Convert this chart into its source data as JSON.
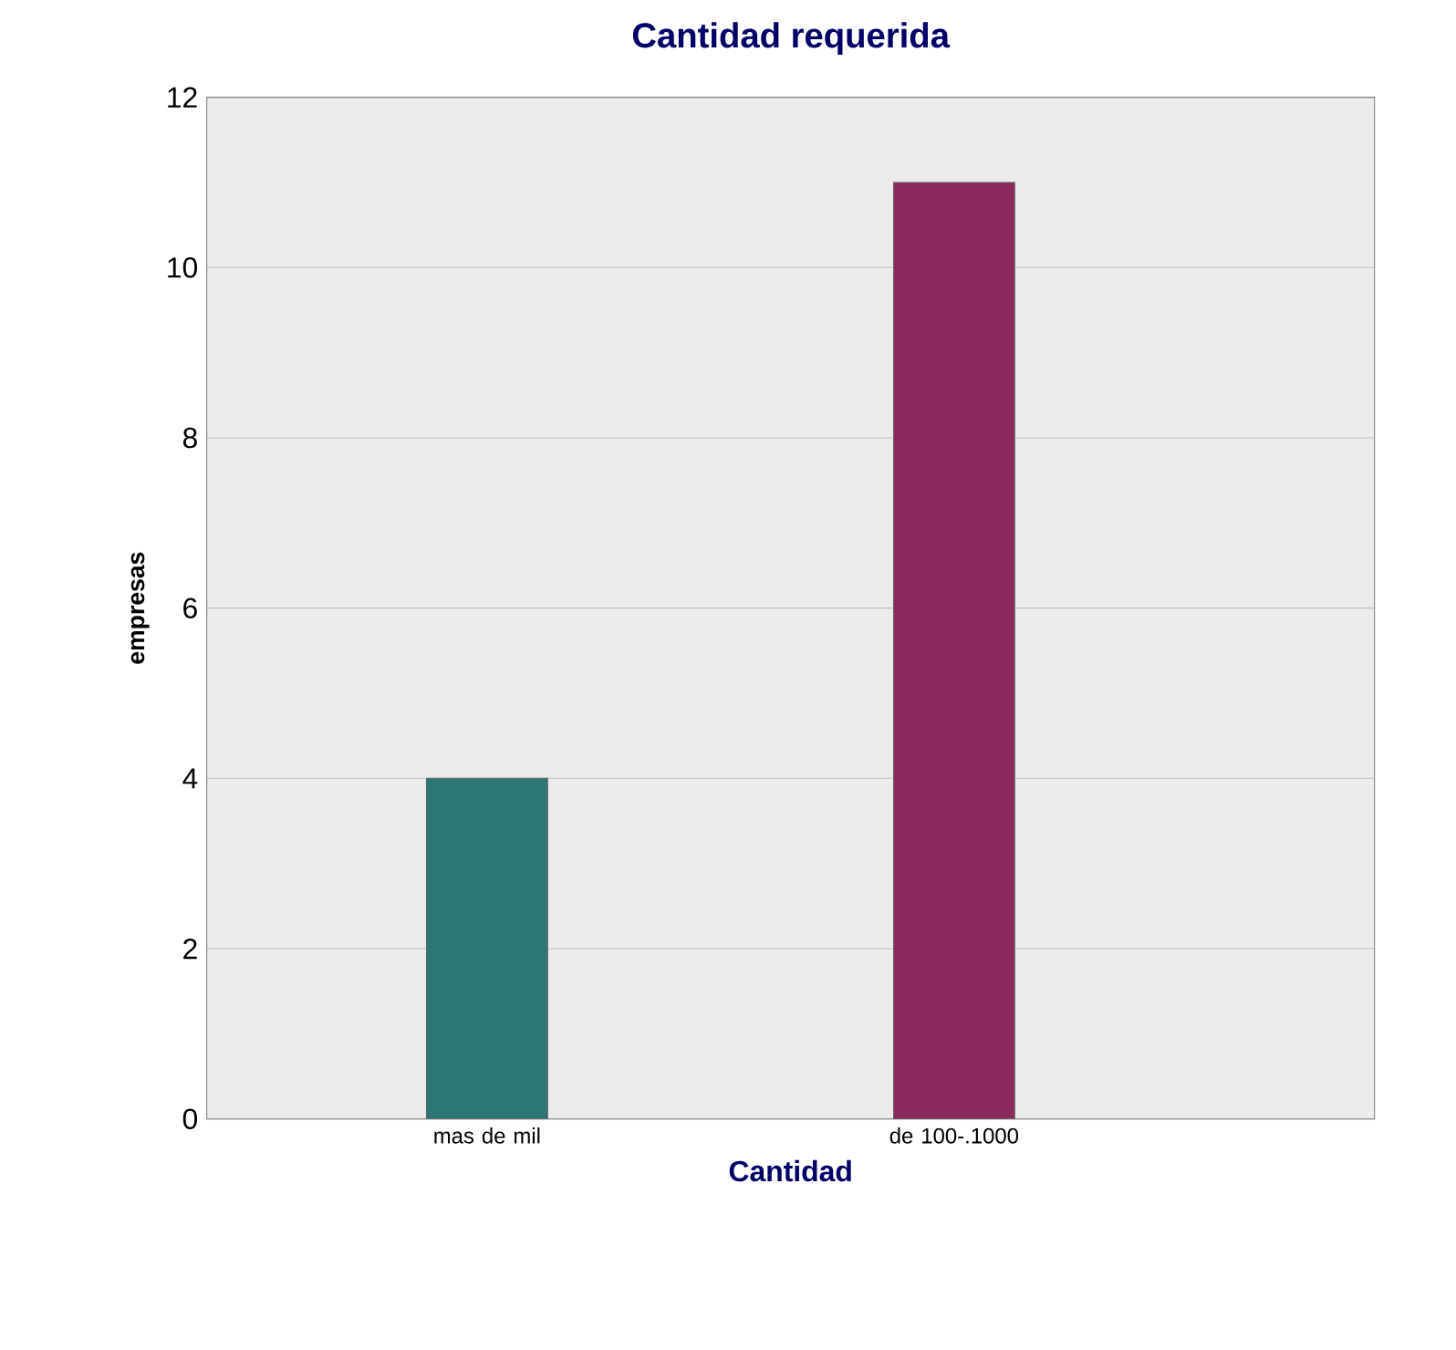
{
  "chart_data": {
    "type": "bar",
    "title": "Cantidad requerida",
    "xlabel": "Cantidad",
    "ylabel": "empresas",
    "categories": [
      "mas de mil",
      "de 100-.1000"
    ],
    "values": [
      4,
      11
    ],
    "colors": [
      "#2b7775",
      "#8a2a5c"
    ],
    "ylim": [
      0,
      12
    ],
    "yticks": [
      0,
      2,
      4,
      6,
      8,
      10,
      12
    ],
    "grid": "y"
  }
}
